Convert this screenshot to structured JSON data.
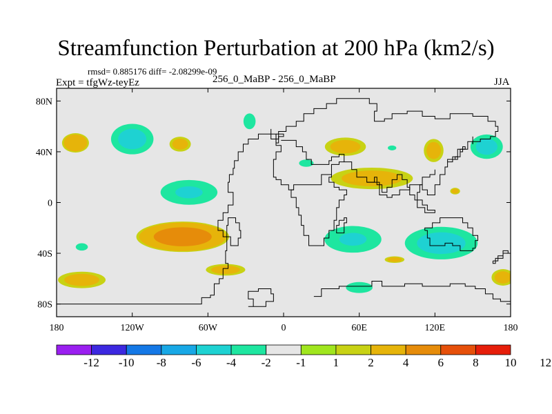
{
  "title": "Streamfunction Perturbation at 200 hPa (km2/s)",
  "stats_line": "rmsd= 0.885176 diff= -2.08299e-09",
  "expt_label": "Expt = tfgWz-teyEz",
  "case_label": "256_0_MaBP - 256_0_MaBP",
  "season_label": "JJA",
  "chart_data": {
    "type": "heatmap",
    "projection": "cylindrical-equidistant",
    "xlim": [
      -180,
      180
    ],
    "ylim": [
      -90,
      90
    ],
    "x_ticks": [
      {
        "value": -180,
        "label": "180"
      },
      {
        "value": -120,
        "label": "120W"
      },
      {
        "value": -60,
        "label": "60W"
      },
      {
        "value": 0,
        "label": "0"
      },
      {
        "value": 60,
        "label": "60E"
      },
      {
        "value": 120,
        "label": "120E"
      },
      {
        "value": 180,
        "label": "180"
      }
    ],
    "y_ticks": [
      {
        "value": 80,
        "label": "80N"
      },
      {
        "value": 40,
        "label": "40N"
      },
      {
        "value": 0,
        "label": "0"
      },
      {
        "value": -40,
        "label": "40S"
      },
      {
        "value": -80,
        "label": "80S"
      }
    ],
    "colorbar": {
      "colors": [
        "#9a1ff0",
        "#3c28e0",
        "#1478e6",
        "#18a8e6",
        "#1ed2d2",
        "#1ee6a0",
        "#e6e6e6",
        "#a0e61e",
        "#c8d214",
        "#e6b40a",
        "#e68c0a",
        "#e6500a",
        "#e61e0a"
      ],
      "labels": [
        "-12",
        "-10",
        "-8",
        "-6",
        "-4",
        "-2",
        "-1",
        "1",
        "2",
        "4",
        "6",
        "8",
        "10",
        "12"
      ]
    },
    "anomalies": [
      {
        "name": "neg-north-pacific-east",
        "lon": -120,
        "lat": 50,
        "rlon": 21,
        "rlat": 15,
        "value": -5
      },
      {
        "name": "pos-north-pacific-west",
        "lon": -165,
        "lat": 47,
        "rlon": 14,
        "rlat": 10,
        "value": 3
      },
      {
        "name": "pos-north-america-west",
        "lon": -82,
        "lat": 46,
        "rlon": 13,
        "rlat": 9,
        "value": 2
      },
      {
        "name": "neg-north-atlantic",
        "lon": -27,
        "lat": 64,
        "rlon": 10,
        "rlat": 13,
        "value": -2
      },
      {
        "name": "neg-east-pacific-tropics",
        "lon": -75,
        "lat": 8,
        "rlon": 30,
        "rlat": 13,
        "value": -4
      },
      {
        "name": "pos-south-pacific",
        "lon": -80,
        "lat": -27,
        "rlon": 43,
        "rlat": 14,
        "value": 5
      },
      {
        "name": "neg-south-pacific-west",
        "lon": -160,
        "lat": -35,
        "rlon": 10,
        "rlat": 6,
        "value": -2
      },
      {
        "name": "pos-southern-ocean-west",
        "lon": -160,
        "lat": -61,
        "rlon": 29,
        "rlat": 10,
        "value": 2
      },
      {
        "name": "pos-southern-ocean-atlantic",
        "lon": -46,
        "lat": -53,
        "rlon": 24,
        "rlat": 7,
        "value": 2
      },
      {
        "name": "neg-atlantic-tropics",
        "lon": 18,
        "lat": 31,
        "rlon": 12,
        "rlat": 6,
        "value": -2
      },
      {
        "name": "pos-europe",
        "lon": 49,
        "lat": 44,
        "rlon": 25,
        "rlat": 11,
        "value": 2
      },
      {
        "name": "pos-asia-tropics",
        "lon": 70,
        "lat": 19,
        "rlon": 50,
        "rlat": 13,
        "value": 2
      },
      {
        "name": "neg-central-asia",
        "lon": 86,
        "lat": 43,
        "rlon": 7,
        "rlat": 4,
        "value": -2
      },
      {
        "name": "pos-east-asia",
        "lon": 119,
        "lat": 41,
        "rlon": 12,
        "rlat": 14,
        "value": 2
      },
      {
        "name": "neg-north-pacific-far-west",
        "lon": 161,
        "lat": 44,
        "rlon": 16,
        "rlat": 12,
        "value": -5
      },
      {
        "name": "pos-west-pacific",
        "lon": 136,
        "lat": 9,
        "rlon": 6,
        "rlat": 4,
        "value": 2
      },
      {
        "name": "neg-indian-ocean",
        "lon": 55,
        "lat": -29,
        "rlon": 30,
        "rlat": 14,
        "value": -4
      },
      {
        "name": "neg-australia",
        "lon": 125,
        "lat": -32,
        "rlon": 36,
        "rlat": 16,
        "value": -5
      },
      {
        "name": "pos-indian-ocean-south",
        "lon": 88,
        "lat": -45,
        "rlon": 12,
        "rlat": 4,
        "value": 2
      },
      {
        "name": "neg-southern-ocean-indian",
        "lon": 60,
        "lat": -67,
        "rlon": 22,
        "rlat": 9,
        "value": -2
      },
      {
        "name": "pos-southern-ocean-pacific",
        "lon": 174,
        "lat": -59,
        "rlon": 14,
        "rlat": 10,
        "value": 2
      }
    ],
    "coastlines": [
      {
        "name": "continent-americas-south",
        "points": [
          [
            -180,
            -80
          ],
          [
            -72,
            -80
          ],
          [
            -65,
            -75
          ],
          [
            -58,
            -73
          ],
          [
            -55,
            -64
          ],
          [
            -51,
            -60
          ],
          [
            -48,
            -52
          ],
          [
            -44,
            -48
          ],
          [
            -46,
            -38
          ],
          [
            -45,
            -30
          ],
          [
            -45,
            -18
          ],
          [
            -44,
            -12
          ],
          [
            -38,
            -16
          ],
          [
            -35,
            -22
          ],
          [
            -34,
            -28
          ],
          [
            -36,
            -34
          ],
          [
            -42,
            -27
          ],
          [
            -48,
            -22
          ],
          [
            -52,
            -14
          ],
          [
            -48,
            -8
          ],
          [
            -44,
            -2
          ],
          [
            -40,
            0
          ],
          [
            -40,
            8
          ],
          [
            -44,
            16
          ],
          [
            -43,
            22
          ],
          [
            -40,
            27
          ],
          [
            -39,
            33
          ],
          [
            -36,
            40
          ],
          [
            -32,
            46
          ],
          [
            -28,
            50
          ],
          [
            -20,
            54
          ],
          [
            -6,
            47
          ],
          [
            -4,
            50
          ],
          [
            -10,
            58
          ]
        ]
      },
      {
        "name": "continent-eurasia-africa",
        "points": [
          [
            -2,
            49
          ],
          [
            10,
            44
          ],
          [
            15,
            40
          ],
          [
            18,
            34
          ],
          [
            22,
            30
          ],
          [
            30,
            30
          ],
          [
            36,
            33
          ],
          [
            38,
            36
          ],
          [
            44,
            38
          ],
          [
            48,
            32
          ],
          [
            54,
            26
          ],
          [
            58,
            20
          ],
          [
            66,
            16
          ],
          [
            76,
            6
          ],
          [
            82,
            4
          ],
          [
            86,
            6
          ],
          [
            92,
            10
          ],
          [
            100,
            14
          ],
          [
            110,
            10
          ],
          [
            114,
            6
          ],
          [
            120,
            14
          ],
          [
            124,
            22
          ],
          [
            128,
            28
          ],
          [
            130,
            34
          ],
          [
            136,
            36
          ],
          [
            138,
            42
          ],
          [
            142,
            42
          ],
          [
            146,
            48
          ],
          [
            150,
            52
          ],
          [
            150,
            46
          ]
        ]
      },
      {
        "name": "arabia-africa-horn",
        "points": [
          [
            48,
            32
          ],
          [
            44,
            30
          ],
          [
            38,
            22
          ],
          [
            30,
            14
          ],
          [
            20,
            14
          ],
          [
            8,
            10
          ],
          [
            4,
            14
          ],
          [
            -2,
            18
          ],
          [
            -6,
            20
          ],
          [
            -8,
            26
          ],
          [
            -8,
            34
          ],
          [
            -6,
            40
          ],
          [
            -2,
            45
          ],
          [
            -6,
            50
          ],
          [
            -4,
            56
          ],
          [
            2,
            60
          ],
          [
            10,
            64
          ],
          [
            16,
            70
          ],
          [
            24,
            74
          ],
          [
            34,
            78
          ],
          [
            42,
            82
          ],
          [
            56,
            82
          ],
          [
            68,
            78
          ],
          [
            74,
            72
          ],
          [
            72,
            64
          ],
          [
            80,
            66
          ],
          [
            86,
            70
          ],
          [
            98,
            72
          ],
          [
            110,
            68
          ],
          [
            120,
            66
          ],
          [
            132,
            70
          ],
          [
            142,
            70
          ],
          [
            150,
            68
          ],
          [
            162,
            64
          ],
          [
            168,
            60
          ],
          [
            170,
            56
          ],
          [
            168,
            52
          ],
          [
            164,
            50
          ],
          [
            156,
            48
          ],
          [
            150,
            46
          ]
        ]
      },
      {
        "name": "africa-south",
        "points": [
          [
            8,
            10
          ],
          [
            6,
            4
          ],
          [
            10,
            -4
          ],
          [
            12,
            -10
          ],
          [
            14,
            -18
          ],
          [
            16,
            -26
          ],
          [
            20,
            -34
          ],
          [
            26,
            -34
          ],
          [
            32,
            -28
          ],
          [
            36,
            -22
          ],
          [
            40,
            -14
          ],
          [
            42,
            -4
          ],
          [
            44,
            2
          ],
          [
            48,
            6
          ],
          [
            50,
            10
          ],
          [
            44,
            12
          ],
          [
            40,
            16
          ],
          [
            36,
            20
          ],
          [
            38,
            22
          ]
        ]
      },
      {
        "name": "india-southeast-asia",
        "points": [
          [
            66,
            16
          ],
          [
            72,
            20
          ],
          [
            74,
            14
          ],
          [
            78,
            8
          ],
          [
            82,
            12
          ],
          [
            86,
            18
          ],
          [
            90,
            22
          ],
          [
            94,
            18
          ],
          [
            98,
            12
          ],
          [
            100,
            6
          ],
          [
            104,
            2
          ],
          [
            106,
            -4
          ],
          [
            112,
            -8
          ],
          [
            116,
            -8
          ],
          [
            120,
            -6
          ],
          [
            114,
            -2
          ],
          [
            110,
            2
          ],
          [
            106,
            8
          ],
          [
            108,
            14
          ],
          [
            110,
            20
          ],
          [
            116,
            22
          ],
          [
            120,
            26
          ]
        ]
      },
      {
        "name": "australia",
        "points": [
          [
            112,
            -22
          ],
          [
            114,
            -28
          ],
          [
            116,
            -34
          ],
          [
            122,
            -34
          ],
          [
            128,
            -32
          ],
          [
            134,
            -34
          ],
          [
            140,
            -38
          ],
          [
            146,
            -38
          ],
          [
            150,
            -36
          ],
          [
            152,
            -30
          ],
          [
            154,
            -26
          ],
          [
            150,
            -20
          ],
          [
            146,
            -16
          ],
          [
            142,
            -12
          ],
          [
            136,
            -12
          ],
          [
            130,
            -12
          ],
          [
            124,
            -16
          ],
          [
            118,
            -20
          ],
          [
            112,
            -22
          ]
        ]
      },
      {
        "name": "antarctica-coast",
        "points": [
          [
            24,
            -74
          ],
          [
            30,
            -68
          ],
          [
            44,
            -66
          ],
          [
            56,
            -66
          ],
          [
            70,
            -62
          ],
          [
            78,
            -66
          ],
          [
            96,
            -64
          ],
          [
            110,
            -66
          ],
          [
            122,
            -66
          ],
          [
            132,
            -64
          ],
          [
            144,
            -66
          ],
          [
            152,
            -68
          ],
          [
            160,
            -72
          ],
          [
            166,
            -76
          ],
          [
            172,
            -78
          ],
          [
            180,
            -80
          ]
        ]
      },
      {
        "name": "island-antarctic-west",
        "points": [
          [
            -28,
            -82
          ],
          [
            -24,
            -76
          ],
          [
            -28,
            -70
          ],
          [
            -20,
            -68
          ],
          [
            -10,
            -72
          ],
          [
            -8,
            -78
          ],
          [
            -14,
            -82
          ],
          [
            -28,
            -82
          ]
        ]
      },
      {
        "name": "island-madagascar",
        "points": [
          [
            44,
            -14
          ],
          [
            48,
            -12
          ],
          [
            50,
            -16
          ],
          [
            48,
            -24
          ],
          [
            44,
            -24
          ],
          [
            42,
            -18
          ],
          [
            44,
            -14
          ]
        ]
      },
      {
        "name": "island-new-zealand",
        "points": [
          [
            166,
            -46
          ],
          [
            170,
            -42
          ],
          [
            174,
            -38
          ],
          [
            178,
            -40
          ],
          [
            174,
            -44
          ],
          [
            168,
            -48
          ],
          [
            166,
            -46
          ]
        ]
      },
      {
        "name": "island-japan",
        "points": [
          [
            130,
            32
          ],
          [
            134,
            34
          ],
          [
            138,
            36
          ],
          [
            140,
            40
          ],
          [
            142,
            44
          ],
          [
            144,
            42
          ],
          [
            140,
            36
          ],
          [
            134,
            32
          ],
          [
            130,
            32
          ]
        ]
      },
      {
        "name": "island-greenland-gap",
        "points": [
          [
            -6,
            54
          ],
          [
            -2,
            54
          ],
          [
            0,
            52
          ],
          [
            -4,
            50
          ],
          [
            -6,
            54
          ]
        ]
      }
    ]
  }
}
